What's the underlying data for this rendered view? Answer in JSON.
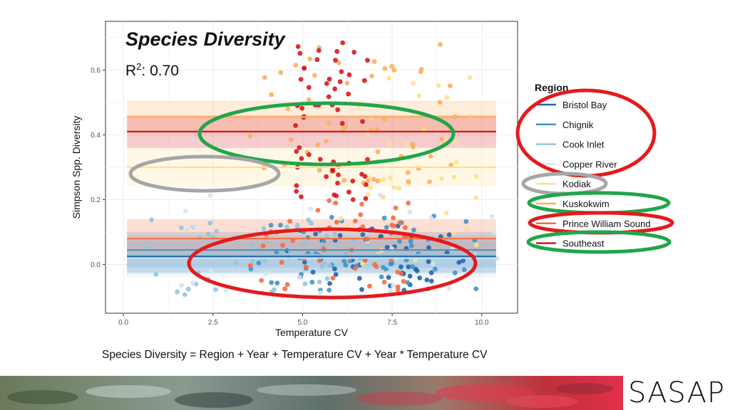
{
  "slide": {
    "title": "Species Diversity",
    "r2_label": "R",
    "r2_sup": "2",
    "r2_value": ": 0.70",
    "formula": "Species Diversity = Region + Year + Temperature CV + Year * Temperature CV",
    "logo_text": "SASAP"
  },
  "colors": {
    "ellipse_red": "#e41a1c",
    "ellipse_green": "#1fa64a",
    "ellipse_gray": "#a6a6a6"
  },
  "chart_data": {
    "type": "scatter",
    "xlabel": "Temperature CV",
    "ylabel": "Simpson Spp. Diversity",
    "xlim": [
      -0.5,
      11
    ],
    "ylim": [
      -0.15,
      0.75
    ],
    "x_ticks": [
      "0.0",
      "2.5",
      "5.0",
      "7.5",
      "10.0"
    ],
    "x_tick_values": [
      0,
      2.5,
      5,
      7.5,
      10
    ],
    "y_ticks": [
      "0.0",
      "0.2",
      "0.4",
      "0.6"
    ],
    "y_tick_values": [
      0,
      0.2,
      0.4,
      0.6
    ],
    "grid": true,
    "legend": {
      "title": "Region",
      "placement": "right"
    },
    "series": [
      {
        "name": "Bristol Bay",
        "color": "#2166ac",
        "fit_y": 0.025,
        "ci": 0.05,
        "x_range": [
          4.5,
          9.5
        ],
        "y_range": [
          -0.08,
          0.12
        ]
      },
      {
        "name": "Chignik",
        "color": "#4393c3",
        "fit_y": 0.045,
        "ci": 0.055,
        "x_range": [
          3.5,
          10.0
        ],
        "y_range": [
          -0.08,
          0.15
        ]
      },
      {
        "name": "Cook Inlet",
        "color": "#92c5de",
        "fit_y": 0.03,
        "ci": 0.06,
        "x_range": [
          0.5,
          7.0
        ],
        "y_range": [
          -0.1,
          0.14
        ]
      },
      {
        "name": "Copper River",
        "color": "#d1e5f0",
        "fit_y": 0.02,
        "ci": 0.06,
        "x_range": [
          1.5,
          10.5
        ],
        "y_range": [
          -0.1,
          0.22
        ]
      },
      {
        "name": "Kodiak",
        "color": "#fee090",
        "fit_y": 0.3,
        "ci": 0.06,
        "x_range": [
          6.0,
          10.0
        ],
        "y_range": [
          0.0,
          0.6
        ]
      },
      {
        "name": "Kuskokwim",
        "color": "#fdae61",
        "fit_y": 0.455,
        "ci": 0.05,
        "x_range": [
          3.5,
          9.5
        ],
        "y_range": [
          0.25,
          0.68
        ]
      },
      {
        "name": "Prince William Sound",
        "color": "#f46d43",
        "fit_y": 0.08,
        "ci": 0.06,
        "x_range": [
          3.5,
          8.0
        ],
        "y_range": [
          -0.08,
          0.2
        ]
      },
      {
        "name": "Southeast",
        "color": "#d7191c",
        "fit_y": 0.41,
        "ci": 0.05,
        "x_range": [
          4.8,
          7.0
        ],
        "y_range": [
          0.2,
          0.72
        ]
      }
    ],
    "points_per_series": [
      55,
      55,
      45,
      35,
      45,
      55,
      55,
      60
    ]
  }
}
